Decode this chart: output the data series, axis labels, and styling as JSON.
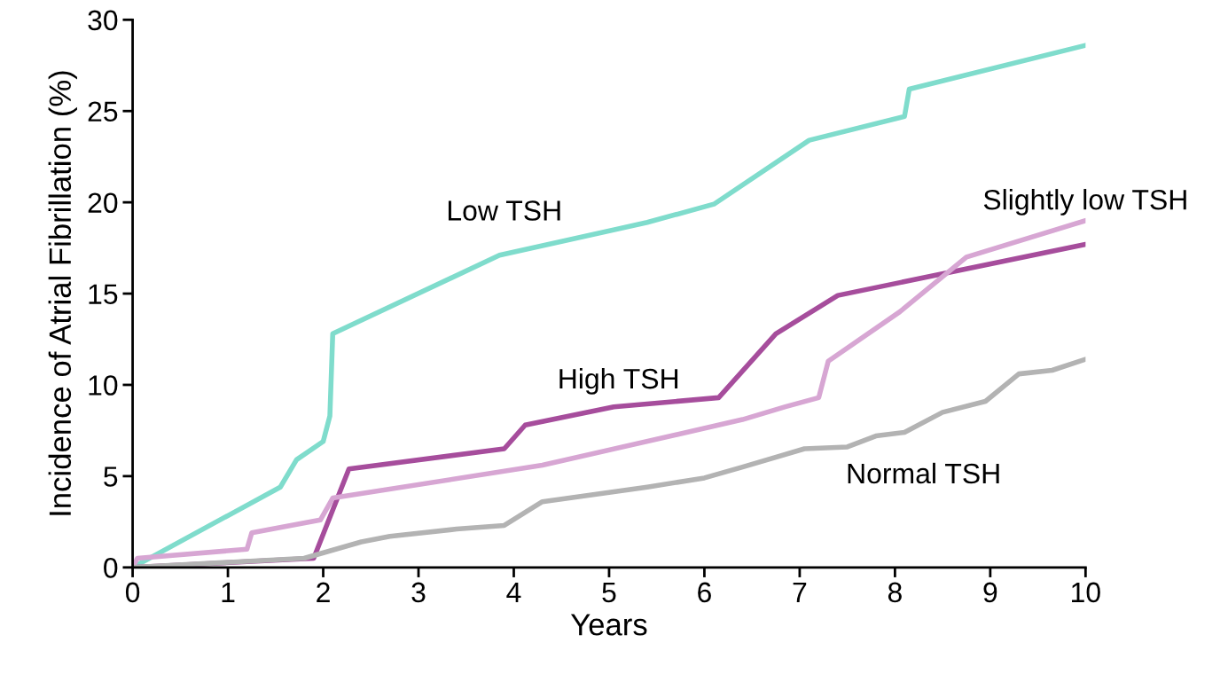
{
  "chart_data": {
    "type": "line",
    "xlabel": "Years",
    "ylabel": "Incidence of Atrial Fibrillation (%)",
    "xlim": [
      0,
      10
    ],
    "xticks": [
      0,
      1,
      2,
      3,
      4,
      5,
      6,
      7,
      8,
      9,
      10
    ],
    "ylim": [
      0,
      30
    ],
    "yticks": [
      0,
      5,
      10,
      15,
      20,
      25,
      30
    ],
    "grid": false,
    "marker": "none",
    "line_style": "solid",
    "series": [
      {
        "name": "Low TSH",
        "color": "#7fdccc",
        "x": [
          0,
          1.55,
          1.72,
          2.0,
          2.07,
          2.1,
          3.85,
          5.4,
          6.1,
          7.1,
          8.1,
          8.15,
          10
        ],
        "values": [
          0,
          4.4,
          5.9,
          6.9,
          8.3,
          12.8,
          17.1,
          18.9,
          19.9,
          23.4,
          24.7,
          26.2,
          28.6
        ]
      },
      {
        "name": "High TSH",
        "color": "#a64d9c",
        "x": [
          0,
          1.9,
          2.27,
          3.9,
          4.12,
          5.05,
          6.15,
          6.75,
          7.4,
          10
        ],
        "values": [
          0,
          0.5,
          5.4,
          6.5,
          7.8,
          8.8,
          9.3,
          12.8,
          14.9,
          17.7
        ]
      },
      {
        "name": "Slightly low TSH",
        "color": "#d7a6d3",
        "x": [
          0,
          0.05,
          1.2,
          1.25,
          1.97,
          2.1,
          4.3,
          6.4,
          6.85,
          7.2,
          7.3,
          8.05,
          8.75,
          10
        ],
        "values": [
          0,
          0.5,
          1.0,
          1.9,
          2.6,
          3.8,
          5.6,
          8.1,
          8.8,
          9.3,
          11.3,
          14.0,
          17.0,
          19.0
        ]
      },
      {
        "name": "Normal TSH",
        "color": "#b3b3b3",
        "x": [
          0,
          1.8,
          2.4,
          2.7,
          3.4,
          3.9,
          4.3,
          5.4,
          6.0,
          6.4,
          7.05,
          7.5,
          7.8,
          8.1,
          8.5,
          8.95,
          9.3,
          9.65,
          10
        ],
        "values": [
          0,
          0.5,
          1.4,
          1.7,
          2.1,
          2.3,
          3.6,
          4.4,
          4.9,
          5.5,
          6.5,
          6.6,
          7.2,
          7.4,
          8.5,
          9.1,
          10.6,
          10.8,
          11.4
        ]
      }
    ]
  }
}
